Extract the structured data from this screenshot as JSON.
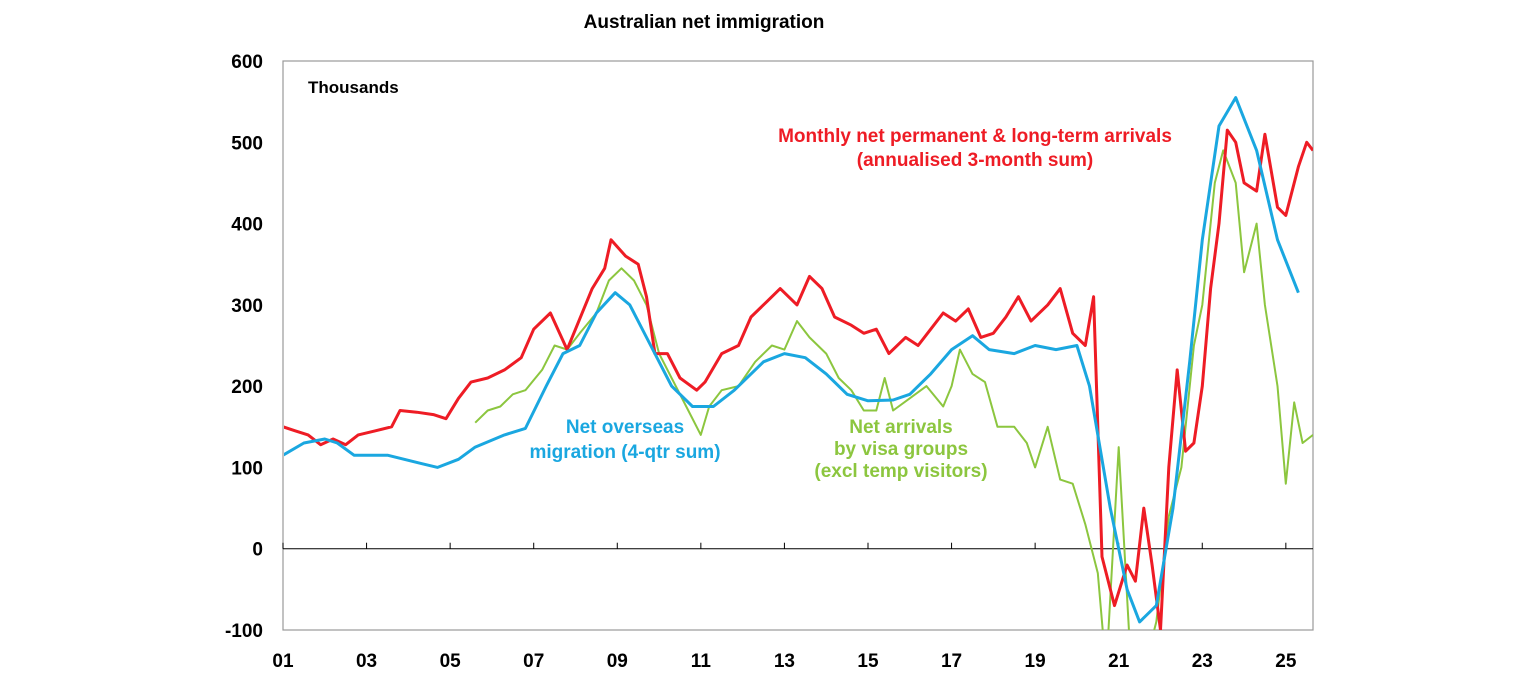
{
  "chart_data": {
    "type": "line",
    "title": "Australian net immigration",
    "ylabel": "Thousands",
    "xlabel": "",
    "ylim": [
      -100,
      600
    ],
    "yticks": [
      -100,
      0,
      100,
      200,
      300,
      400,
      500,
      600
    ],
    "xlim": [
      2001,
      2025.65
    ],
    "xticks": [
      2001,
      2003,
      2005,
      2007,
      2009,
      2011,
      2013,
      2015,
      2017,
      2019,
      2021,
      2023,
      2025
    ],
    "xtick_labels": [
      "01",
      "03",
      "05",
      "07",
      "09",
      "11",
      "13",
      "15",
      "17",
      "19",
      "21",
      "23",
      "25"
    ],
    "grid": false,
    "legend": "none (inline annotations)",
    "series": [
      {
        "name": "Monthly net permanent & long-term arrivals (annualised 3-month sum)",
        "annotation": [
          "Monthly net permanent & long-term arrivals",
          "(annualised 3-month sum)"
        ],
        "color": "#ee1c25",
        "x": [
          2001.0,
          2001.3,
          2001.6,
          2001.9,
          2002.2,
          2002.5,
          2002.8,
          2003.2,
          2003.6,
          2003.8,
          2004.2,
          2004.6,
          2004.9,
          2005.2,
          2005.5,
          2005.9,
          2006.3,
          2006.7,
          2007.0,
          2007.4,
          2007.8,
          2008.0,
          2008.4,
          2008.7,
          2008.85,
          2009.2,
          2009.5,
          2009.7,
          2009.9,
          2010.2,
          2010.5,
          2010.9,
          2011.1,
          2011.5,
          2011.9,
          2012.2,
          2012.6,
          2012.9,
          2013.3,
          2013.6,
          2013.9,
          2014.2,
          2014.6,
          2014.9,
          2015.2,
          2015.5,
          2015.9,
          2016.2,
          2016.5,
          2016.8,
          2017.1,
          2017.4,
          2017.7,
          2018.0,
          2018.3,
          2018.6,
          2018.9,
          2019.3,
          2019.6,
          2019.9,
          2020.2,
          2020.4,
          2020.6,
          2020.9,
          2021.2,
          2021.4,
          2021.6,
          2021.8,
          2022.0,
          2022.2,
          2022.4,
          2022.6,
          2022.8,
          2023.0,
          2023.2,
          2023.4,
          2023.6,
          2023.8,
          2024.0,
          2024.3,
          2024.5,
          2024.8,
          2025.0,
          2025.3,
          2025.5,
          2025.65
        ],
        "y": [
          150,
          145,
          140,
          128,
          135,
          128,
          140,
          145,
          150,
          170,
          168,
          165,
          160,
          185,
          205,
          210,
          220,
          235,
          270,
          290,
          245,
          270,
          320,
          345,
          380,
          360,
          350,
          310,
          240,
          240,
          210,
          195,
          205,
          240,
          250,
          285,
          305,
          320,
          300,
          335,
          320,
          285,
          275,
          265,
          270,
          240,
          260,
          250,
          270,
          290,
          280,
          295,
          260,
          265,
          285,
          310,
          280,
          300,
          320,
          265,
          250,
          310,
          -10,
          -70,
          -20,
          -40,
          50,
          -20,
          -100,
          100,
          220,
          120,
          130,
          200,
          320,
          400,
          515,
          500,
          450,
          440,
          510,
          420,
          410,
          470,
          500,
          490
        ]
      },
      {
        "name": "Net overseas migration (4-qtr sum)",
        "annotation": [
          "Net overseas",
          "migration (4-qtr sum)"
        ],
        "color": "#1aa7e0",
        "x": [
          2001.0,
          2001.5,
          2002.0,
          2002.3,
          2002.7,
          2003.5,
          2004.3,
          2004.7,
          2005.2,
          2005.6,
          2006.3,
          2006.8,
          2007.3,
          2007.7,
          2008.1,
          2008.5,
          2008.95,
          2009.3,
          2009.8,
          2010.3,
          2010.8,
          2011.3,
          2011.8,
          2012.5,
          2013.0,
          2013.5,
          2014.0,
          2014.5,
          2015.0,
          2015.6,
          2016.0,
          2016.5,
          2017.0,
          2017.5,
          2017.9,
          2018.5,
          2019.0,
          2019.5,
          2020.0,
          2020.3,
          2020.8,
          2021.2,
          2021.5,
          2021.9,
          2022.3,
          2022.7,
          2023.0,
          2023.4,
          2023.8,
          2024.3,
          2024.8,
          2025.3
        ],
        "y": [
          115,
          130,
          135,
          130,
          115,
          115,
          105,
          100,
          110,
          125,
          140,
          148,
          200,
          240,
          250,
          290,
          315,
          300,
          250,
          200,
          175,
          175,
          195,
          230,
          240,
          235,
          215,
          190,
          182,
          183,
          190,
          215,
          245,
          262,
          245,
          240,
          250,
          245,
          250,
          200,
          50,
          -50,
          -90,
          -70,
          50,
          230,
          380,
          520,
          555,
          490,
          380,
          315
        ]
      },
      {
        "name": "Net arrivals by visa groups (excl temp visitors)",
        "annotation": [
          "Net arrivals",
          "by visa groups",
          "(excl temp visitors)"
        ],
        "color": "#8cc63f",
        "x": [
          2005.6,
          2005.9,
          2006.2,
          2006.5,
          2006.8,
          2007.2,
          2007.5,
          2007.8,
          2008.1,
          2008.5,
          2008.8,
          2009.1,
          2009.4,
          2009.7,
          2010.0,
          2010.3,
          2010.7,
          2011.0,
          2011.2,
          2011.5,
          2011.9,
          2012.3,
          2012.7,
          2013.0,
          2013.3,
          2013.6,
          2014.0,
          2014.3,
          2014.6,
          2014.9,
          2015.2,
          2015.4,
          2015.6,
          2016.0,
          2016.4,
          2016.8,
          2017.0,
          2017.2,
          2017.5,
          2017.8,
          2018.1,
          2018.5,
          2018.8,
          2019.0,
          2019.3,
          2019.6,
          2019.9,
          2020.2,
          2020.5,
          2020.7,
          2021.0,
          2021.3,
          2021.6,
          2021.9,
          2022.2,
          2022.5,
          2022.8,
          2023.0,
          2023.3,
          2023.5,
          2023.8,
          2024.0,
          2024.3,
          2024.5,
          2024.8,
          2025.0,
          2025.2,
          2025.4,
          2025.65
        ],
        "y": [
          155,
          170,
          175,
          190,
          195,
          220,
          250,
          245,
          265,
          290,
          330,
          345,
          330,
          300,
          240,
          210,
          170,
          140,
          175,
          195,
          200,
          230,
          250,
          245,
          280,
          260,
          240,
          210,
          195,
          170,
          170,
          210,
          170,
          185,
          200,
          175,
          200,
          245,
          215,
          205,
          150,
          150,
          130,
          100,
          150,
          85,
          80,
          30,
          -30,
          -150,
          125,
          -150,
          -150,
          -90,
          40,
          100,
          250,
          300,
          450,
          490,
          450,
          340,
          400,
          300,
          200,
          80,
          180,
          130,
          140
        ]
      }
    ]
  }
}
